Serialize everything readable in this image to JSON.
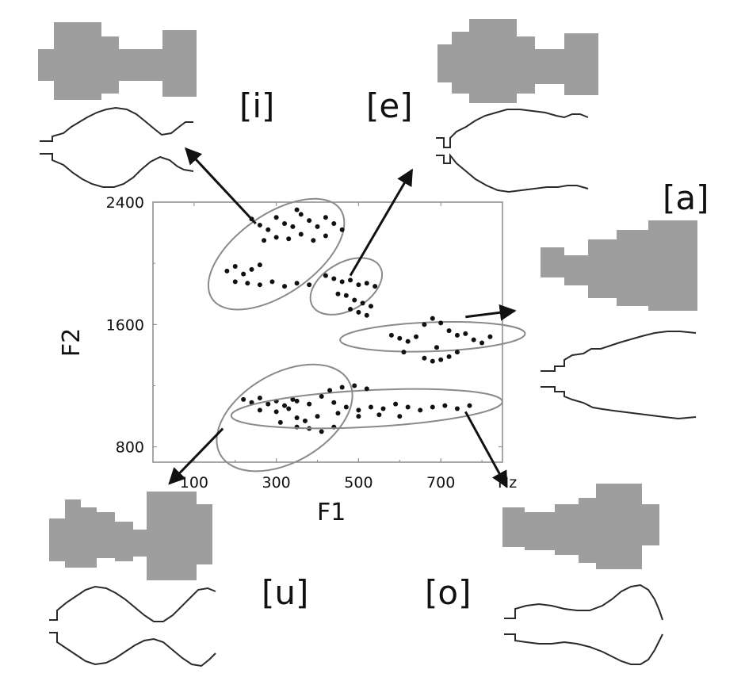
{
  "vowels": [
    {
      "id": "i",
      "label": "[i]"
    },
    {
      "id": "e",
      "label": "[e]"
    },
    {
      "id": "a",
      "label": "[a]"
    },
    {
      "id": "u",
      "label": "[u]"
    },
    {
      "id": "o",
      "label": "[o]"
    }
  ],
  "chart_data": {
    "type": "scatter",
    "xlabel": "F1",
    "ylabel": "F2",
    "x_unit": "Hz",
    "xlim": [
      0,
      850
    ],
    "ylim": [
      700,
      2400
    ],
    "x_ticks": [
      100,
      300,
      500,
      700
    ],
    "y_ticks": [
      800,
      1600,
      2400
    ],
    "x_tick_labels": [
      "100",
      "300",
      "500",
      "700"
    ],
    "y_tick_labels": [
      "800",
      "1600",
      "2400"
    ],
    "grid": false,
    "clusters": [
      {
        "vowel": "[i]",
        "ellipse": {
          "cx": 300,
          "cy": 2060,
          "rx": 190,
          "ry": 260,
          "rotate_deg": -35
        },
        "points": [
          [
            240,
            2290
          ],
          [
            260,
            2250
          ],
          [
            280,
            2220
          ],
          [
            300,
            2300
          ],
          [
            320,
            2260
          ],
          [
            340,
            2240
          ],
          [
            360,
            2320
          ],
          [
            380,
            2280
          ],
          [
            400,
            2240
          ],
          [
            420,
            2300
          ],
          [
            440,
            2260
          ],
          [
            460,
            2220
          ],
          [
            270,
            2150
          ],
          [
            300,
            2170
          ],
          [
            330,
            2160
          ],
          [
            360,
            2190
          ],
          [
            390,
            2150
          ],
          [
            420,
            2180
          ],
          [
            180,
            1950
          ],
          [
            200,
            1980
          ],
          [
            220,
            1930
          ],
          [
            240,
            1960
          ],
          [
            200,
            1880
          ],
          [
            230,
            1870
          ],
          [
            260,
            1860
          ],
          [
            290,
            1880
          ],
          [
            320,
            1850
          ],
          [
            350,
            1870
          ],
          [
            380,
            1860
          ],
          [
            260,
            1990
          ],
          [
            350,
            2350
          ]
        ]
      },
      {
        "vowel": "[e]",
        "ellipse": {
          "cx": 470,
          "cy": 1850,
          "rx": 95,
          "ry": 155,
          "rotate_deg": -30
        },
        "points": [
          [
            420,
            1920
          ],
          [
            440,
            1900
          ],
          [
            460,
            1880
          ],
          [
            480,
            1890
          ],
          [
            500,
            1860
          ],
          [
            520,
            1870
          ],
          [
            540,
            1850
          ],
          [
            450,
            1800
          ],
          [
            470,
            1790
          ],
          [
            490,
            1760
          ],
          [
            510,
            1740
          ],
          [
            530,
            1720
          ],
          [
            480,
            1700
          ],
          [
            500,
            1680
          ],
          [
            520,
            1660
          ]
        ]
      },
      {
        "vowel": "[a]",
        "ellipse": {
          "cx": 680,
          "cy": 1520,
          "rx": 225,
          "ry": 95,
          "rotate_deg": -2
        },
        "points": [
          [
            580,
            1530
          ],
          [
            600,
            1510
          ],
          [
            620,
            1490
          ],
          [
            640,
            1520
          ],
          [
            660,
            1600
          ],
          [
            680,
            1640
          ],
          [
            700,
            1610
          ],
          [
            720,
            1560
          ],
          [
            740,
            1530
          ],
          [
            760,
            1540
          ],
          [
            780,
            1500
          ],
          [
            800,
            1480
          ],
          [
            820,
            1520
          ],
          [
            660,
            1380
          ],
          [
            680,
            1360
          ],
          [
            700,
            1370
          ],
          [
            720,
            1390
          ],
          [
            740,
            1420
          ],
          [
            690,
            1450
          ],
          [
            610,
            1420
          ]
        ]
      },
      {
        "vowel": "[u]",
        "ellipse": {
          "cx": 320,
          "cy": 990,
          "rx": 180,
          "ry": 290,
          "rotate_deg": -30
        },
        "points": [
          [
            220,
            1110
          ],
          [
            240,
            1090
          ],
          [
            260,
            1120
          ],
          [
            280,
            1080
          ],
          [
            300,
            1100
          ],
          [
            320,
            1070
          ],
          [
            340,
            1110
          ],
          [
            260,
            1040
          ],
          [
            300,
            1030
          ],
          [
            330,
            1050
          ],
          [
            350,
            990
          ],
          [
            370,
            970
          ],
          [
            400,
            1000
          ],
          [
            380,
            920
          ],
          [
            410,
            900
          ],
          [
            440,
            930
          ],
          [
            350,
            930
          ],
          [
            310,
            960
          ]
        ]
      },
      {
        "vowel": "[o]",
        "ellipse": {
          "cx": 520,
          "cy": 1050,
          "rx": 330,
          "ry": 120,
          "rotate_deg": -3
        },
        "points": [
          [
            350,
            1100
          ],
          [
            380,
            1080
          ],
          [
            410,
            1130
          ],
          [
            440,
            1090
          ],
          [
            470,
            1060
          ],
          [
            500,
            1040
          ],
          [
            530,
            1060
          ],
          [
            560,
            1050
          ],
          [
            590,
            1080
          ],
          [
            620,
            1060
          ],
          [
            650,
            1040
          ],
          [
            680,
            1060
          ],
          [
            710,
            1070
          ],
          [
            740,
            1050
          ],
          [
            770,
            1070
          ],
          [
            430,
            1170
          ],
          [
            460,
            1190
          ],
          [
            490,
            1200
          ],
          [
            520,
            1180
          ],
          [
            450,
            1020
          ],
          [
            500,
            1000
          ],
          [
            550,
            1010
          ],
          [
            600,
            1000
          ]
        ]
      }
    ],
    "arrows": [
      {
        "vowel": "[i]",
        "from": [
          250,
          2260
        ],
        "to": [
          80,
          2750
        ]
      },
      {
        "vowel": "[e]",
        "from": [
          480,
          1920
        ],
        "to": [
          630,
          2610
        ]
      },
      {
        "vowel": "[a]",
        "from": [
          760,
          1650
        ],
        "to": [
          880,
          1690
        ]
      },
      {
        "vowel": "[u]",
        "from": [
          170,
          920
        ],
        "to": [
          40,
          560
        ]
      },
      {
        "vowel": "[o]",
        "from": [
          760,
          1030
        ],
        "to": [
          860,
          540
        ]
      }
    ]
  },
  "colors": {
    "shape_fill": "#9e9e9e",
    "outline_stroke": "#2a2a2a",
    "ellipse_stroke": "#8a8a8a",
    "dot": "#111111",
    "frame": "#888888"
  }
}
